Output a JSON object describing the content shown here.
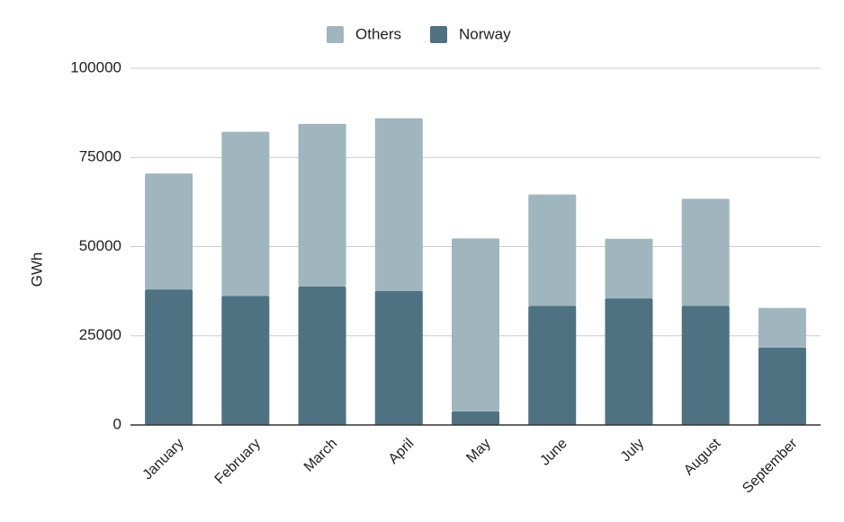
{
  "chart_data": {
    "type": "bar",
    "stacked": true,
    "title": "",
    "xlabel": "",
    "ylabel": "GWh",
    "ylim": [
      0,
      100000
    ],
    "yticks": [
      0,
      25000,
      50000,
      75000,
      100000
    ],
    "grid": true,
    "legend_position": "top",
    "categories": [
      "January",
      "February",
      "March",
      "April",
      "May",
      "June",
      "July",
      "August",
      "September"
    ],
    "series": [
      {
        "name": "Norway",
        "color": "#4e7282",
        "values": [
          38000,
          36200,
          38800,
          37600,
          3800,
          33400,
          35500,
          33400,
          21700
        ]
      },
      {
        "name": "Others",
        "color": "#a0b6be",
        "values": [
          32500,
          46000,
          45600,
          48400,
          48500,
          31200,
          16700,
          30000,
          11100
        ]
      }
    ]
  }
}
